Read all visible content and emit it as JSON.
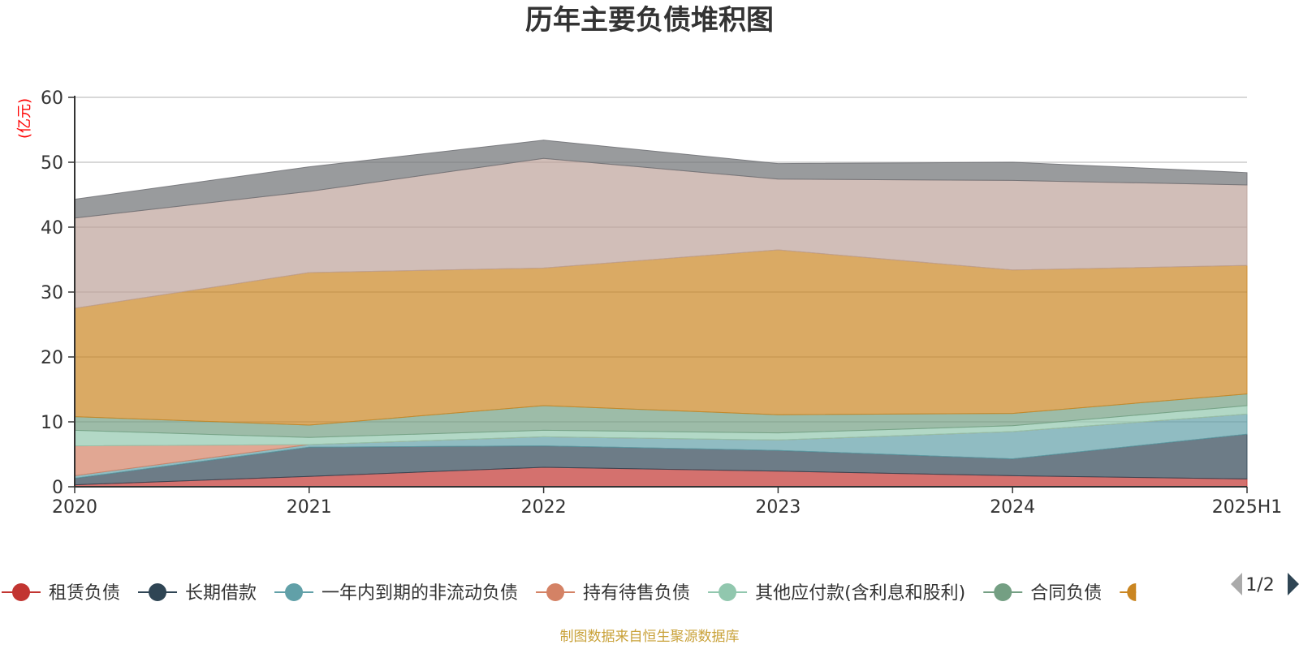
{
  "chart_data": {
    "type": "area",
    "stacked": true,
    "title": "历年主要负债堆积图",
    "ylabel": "(亿元)",
    "xlabel": "",
    "x": [
      "2020",
      "2021",
      "2022",
      "2023",
      "2024",
      "2025H1"
    ],
    "ylim": [
      0,
      60
    ],
    "yticks": [
      0,
      10,
      20,
      30,
      40,
      50,
      60
    ],
    "grid": true,
    "series": [
      {
        "name": "租赁负债",
        "color": "#c23531",
        "values": [
          0.3,
          1.6,
          3.0,
          2.4,
          1.7,
          1.2
        ]
      },
      {
        "name": "长期借款",
        "color": "#2f4554",
        "values": [
          1.0,
          4.5,
          3.3,
          3.2,
          2.6,
          6.9
        ]
      },
      {
        "name": "一年内到期的非流动负债",
        "color": "#61a0a8",
        "values": [
          0.4,
          0.4,
          1.4,
          1.6,
          4.2,
          3.1
        ]
      },
      {
        "name": "持有待售负债",
        "color": "#d48265",
        "values": [
          4.6,
          0,
          0,
          0,
          0,
          0
        ]
      },
      {
        "name": "其他应付款(含利息和股利)",
        "color": "#91c7ae",
        "values": [
          2.4,
          1.1,
          1.0,
          1.1,
          0.9,
          1.3
        ]
      },
      {
        "name": "合同负债",
        "color": "#749f83",
        "values": [
          2.1,
          1.9,
          3.8,
          2.8,
          1.9,
          1.8
        ]
      },
      {
        "name": "",
        "color": "#ca8622",
        "values": [
          16.7,
          23.5,
          21.2,
          25.4,
          22.1,
          19.8
        ]
      },
      {
        "name": "",
        "color": "#bda29a",
        "values": [
          13.9,
          12.5,
          16.9,
          10.9,
          13.8,
          12.4
        ]
      },
      {
        "name": "",
        "color": "#6e7074",
        "values": [
          2.9,
          3.8,
          2.8,
          2.4,
          2.8,
          1.9
        ]
      }
    ],
    "legend": {
      "position": "bottom",
      "visible": [
        "租赁负债",
        "长期借款",
        "一年内到期的非流动负债",
        "持有待售负债",
        "其他应付款(含利息和股利)",
        "合同负债"
      ],
      "page": "1/2"
    }
  },
  "source_note": "制图数据来自恒生聚源数据库"
}
